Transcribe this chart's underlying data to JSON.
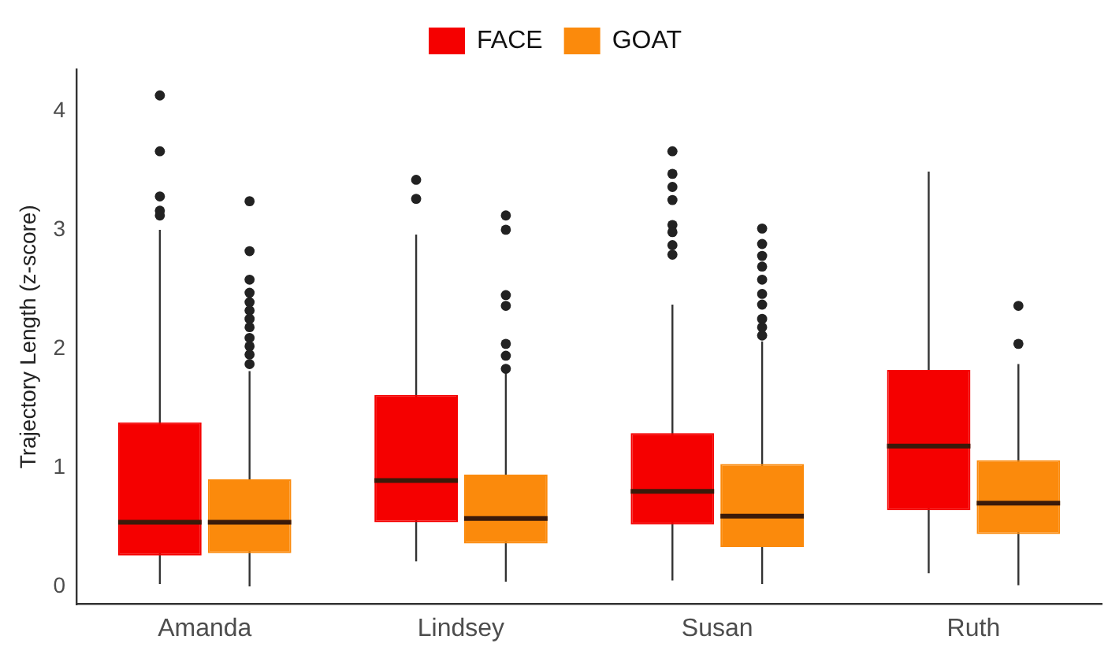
{
  "chart_data": {
    "type": "box",
    "ylabel": "Trajectory Length (z-score)",
    "categories": [
      "Amanda",
      "Lindsey",
      "Susan",
      "Ruth"
    ],
    "ylim": [
      -0.15,
      4.35
    ],
    "yticks": [
      0,
      1,
      2,
      3,
      4
    ],
    "grid": false,
    "legend": "top",
    "marker": "circle",
    "series": [
      {
        "name": "FACE",
        "color": "#f50000",
        "boxes": [
          {
            "low": 0.02,
            "q1": 0.26,
            "median": 0.54,
            "q3": 1.38,
            "high": 3.0,
            "outliers": [
              4.13,
              3.66,
              3.28,
              3.16,
              3.12
            ]
          },
          {
            "low": 0.21,
            "q1": 0.54,
            "median": 0.89,
            "q3": 1.61,
            "high": 2.96,
            "outliers": [
              3.42,
              3.26
            ]
          },
          {
            "low": 0.05,
            "q1": 0.52,
            "median": 0.8,
            "q3": 1.29,
            "high": 2.37,
            "outliers": [
              3.66,
              3.47,
              3.36,
              3.25,
              3.04,
              2.98,
              2.87,
              2.79
            ]
          },
          {
            "low": 0.11,
            "q1": 0.64,
            "median": 1.18,
            "q3": 1.82,
            "high": 3.49
          }
        ]
      },
      {
        "name": "GOAT",
        "color": "#fb8a0c",
        "boxes": [
          {
            "low": 0.0,
            "q1": 0.28,
            "median": 0.54,
            "q3": 0.9,
            "high": 1.81,
            "outliers": [
              3.24,
              2.82,
              2.58,
              2.47,
              2.39,
              2.32,
              2.25,
              2.18,
              2.09,
              2.02,
              1.95,
              1.87
            ]
          },
          {
            "low": 0.04,
            "q1": 0.36,
            "median": 0.57,
            "q3": 0.94,
            "high": 1.81,
            "outliers": [
              3.12,
              3.0,
              2.45,
              2.36,
              2.04,
              1.94,
              1.83
            ]
          },
          {
            "low": 0.02,
            "q1": 0.33,
            "median": 0.59,
            "q3": 1.03,
            "high": 2.06,
            "outliers": [
              3.01,
              2.88,
              2.78,
              2.69,
              2.58,
              2.46,
              2.37,
              2.25,
              2.18,
              2.11
            ]
          },
          {
            "low": 0.01,
            "q1": 0.44,
            "median": 0.7,
            "q3": 1.06,
            "high": 1.87,
            "outliers": [
              2.36,
              2.04
            ]
          }
        ]
      }
    ]
  }
}
